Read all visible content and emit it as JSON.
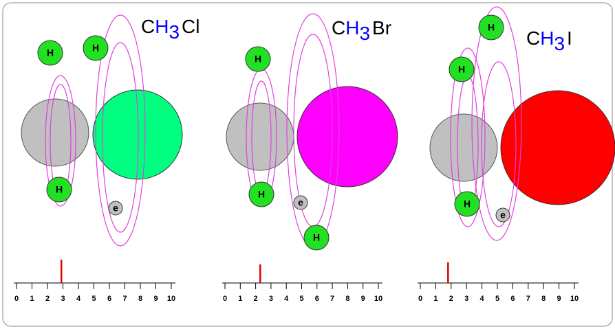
{
  "panels": [
    {
      "formula": {
        "carbon": "C",
        "hydrogen": "H",
        "subscript": "3",
        "halogen": "Cl"
      },
      "atoms": [
        "H",
        "H",
        "H",
        "e"
      ],
      "scale": {
        "ticks": [
          0,
          1,
          2,
          3,
          4,
          5,
          6,
          7,
          8,
          9,
          10
        ],
        "marker": 2.9
      }
    },
    {
      "formula": {
        "carbon": "C",
        "hydrogen": "H",
        "subscript": "3",
        "halogen": "Br"
      },
      "atoms": [
        "H",
        "H",
        "H",
        "e"
      ],
      "scale": {
        "ticks": [
          0,
          1,
          2,
          3,
          4,
          5,
          6,
          7,
          8,
          9,
          10
        ],
        "marker": 2.3
      }
    },
    {
      "formula": {
        "carbon": "C",
        "hydrogen": "H",
        "subscript": "3",
        "halogen": "I"
      },
      "atoms": [
        "H",
        "H",
        "H",
        "e"
      ],
      "scale": {
        "ticks": [
          0,
          1,
          2,
          3,
          4,
          5,
          6,
          7,
          8,
          9,
          10
        ],
        "marker": 1.8
      }
    }
  ]
}
